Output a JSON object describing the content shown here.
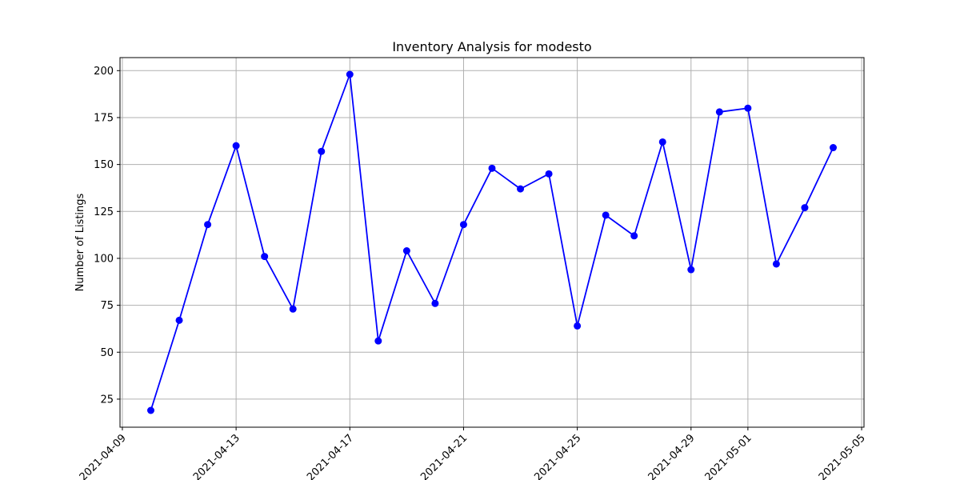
{
  "chart_data": {
    "type": "line",
    "title": "Inventory Analysis for modesto",
    "xlabel": "",
    "ylabel": "Number of Listings",
    "x_is_date": true,
    "xlim": [
      "2021-04-08T22:00",
      "2021-05-05T02:00"
    ],
    "ylim": [
      10.05,
      206.95
    ],
    "grid": true,
    "line_color": "#0000ff",
    "marker": "circle",
    "x_ticks": [
      "2021-04-09",
      "2021-04-13",
      "2021-04-17",
      "2021-04-21",
      "2021-04-25",
      "2021-04-29",
      "2021-05-01",
      "2021-05-05"
    ],
    "y_ticks": [
      25,
      50,
      75,
      100,
      125,
      150,
      175,
      200
    ],
    "series": [
      {
        "x": [
          "2021-04-10",
          "2021-04-11",
          "2021-04-12",
          "2021-04-13",
          "2021-04-14",
          "2021-04-15",
          "2021-04-16",
          "2021-04-17",
          "2021-04-18",
          "2021-04-19",
          "2021-04-20",
          "2021-04-21",
          "2021-04-22",
          "2021-04-23",
          "2021-04-24",
          "2021-04-25",
          "2021-04-26",
          "2021-04-27",
          "2021-04-28",
          "2021-04-29",
          "2021-04-30",
          "2021-05-01",
          "2021-05-02",
          "2021-05-03",
          "2021-05-04"
        ],
        "values": [
          19,
          67,
          118,
          160,
          101,
          73,
          157,
          198,
          56,
          104,
          76,
          118,
          148,
          137,
          145,
          64,
          123,
          112,
          162,
          94,
          178,
          180,
          97,
          127,
          159
        ]
      }
    ]
  }
}
